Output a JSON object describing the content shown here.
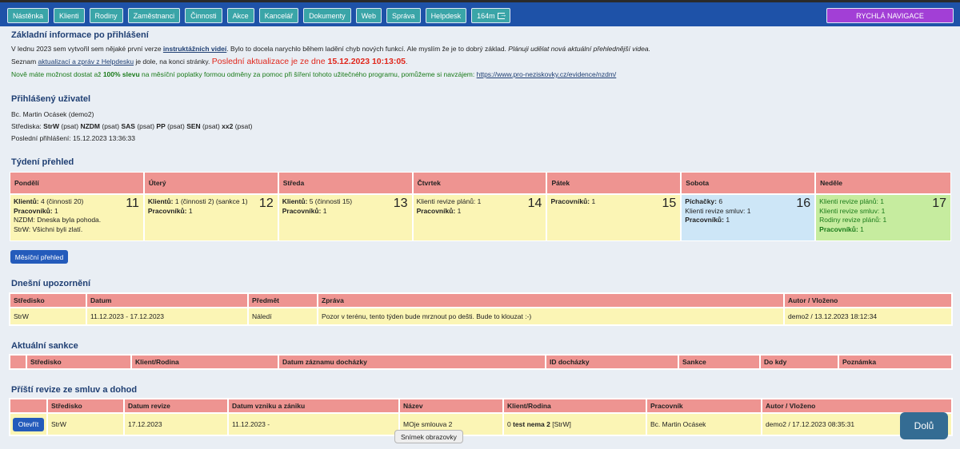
{
  "nav": {
    "items": [
      "Nástěnka",
      "Klienti",
      "Rodiny",
      "Zaměstnanci",
      "Činnosti",
      "Akce",
      "Kancelář",
      "Dokumenty",
      "Web",
      "Správa",
      "Helpdesk"
    ],
    "timer": "164m",
    "quick_nav": "RYCHLÁ NAVIGACE"
  },
  "info": {
    "title": "Základní informace po přihlášení",
    "line1_a": "V lednu 2023 sem vytvořil sem nějaké první verze ",
    "line1_link": "instruktážních videí",
    "line1_b": ". Bylo to docela narychlo během ladění chyb nových funkcí. Ale myslím že je to dobrý základ. ",
    "line1_c": "Plánuji udělat nová aktuální přehlednější videa.",
    "line2_a": "Seznam ",
    "line2_link": "aktualizací a zpráv z Helpdesku",
    "line2_b": " je dole, na konci stránky. ",
    "line2_red": "Poslední aktualizace je ze dne ",
    "line2_date": "15.12.2023 10:13:05",
    "line2_end": ".",
    "line3_a": "Nově máte možnost dostat až ",
    "line3_bold": "100% slevu",
    "line3_b": " na měsíční poplatky formou odměny za pomoc při šíření tohoto užitečného programu, pomůžeme si navzájem: ",
    "line3_link": "https://www.pro-neziskovky.cz/evidence/nzdm/"
  },
  "user": {
    "title": "Přihlášený uživatel",
    "name": "Bc. Martin Ocásek (demo2)",
    "centers_label": "Střediska: ",
    "centers": [
      {
        "code": "StrW",
        "perm": " (psat) "
      },
      {
        "code": "NZDM",
        "perm": " (psat) "
      },
      {
        "code": "SAS",
        "perm": " (psat) "
      },
      {
        "code": "PP",
        "perm": " (psat) "
      },
      {
        "code": "SEN",
        "perm": " (psat) "
      },
      {
        "code": "xx2",
        "perm": " (psat)"
      }
    ],
    "last_login": "Poslední přihlášení: 15.12.2023 13:36:33"
  },
  "week": {
    "title": "Týdení přehled",
    "days": [
      {
        "name": "Pondělí",
        "num": "11",
        "lines": [
          [
            "Klientů:",
            " 4 (činnosti 20)"
          ],
          [
            "Pracovníků:",
            " 1"
          ],
          [
            "",
            "NZDM: Dneska byla pohoda."
          ],
          [
            "",
            "StrW: Všichni byli zlatí."
          ]
        ]
      },
      {
        "name": "Úterý",
        "num": "12",
        "lines": [
          [
            "Klientů:",
            " 1 (činnosti 2) (sankce 1)"
          ],
          [
            "Pracovníků:",
            " 1"
          ]
        ]
      },
      {
        "name": "Středa",
        "num": "13",
        "lines": [
          [
            "Klientů:",
            " 5 (činnosti 15)"
          ],
          [
            "Pracovníků:",
            " 1"
          ]
        ]
      },
      {
        "name": "Čtvrtek",
        "num": "14",
        "lines": [
          [
            "",
            "Klienti revize plánů: 1"
          ],
          [
            "Pracovníků:",
            " 1"
          ]
        ]
      },
      {
        "name": "Pátek",
        "num": "15",
        "lines": [
          [
            "Pracovníků:",
            " 1"
          ]
        ]
      },
      {
        "name": "Sobota",
        "num": "16",
        "lines": [
          [
            "Píchačky:",
            " 6"
          ],
          [
            "",
            "Klienti revize smluv: 1"
          ],
          [
            "Pracovníků:",
            " 1"
          ]
        ]
      },
      {
        "name": "Neděle",
        "num": "17",
        "lines": [
          [
            "",
            "Klienti revize plánů: 1"
          ],
          [
            "",
            "Klienti revize smluv: 1"
          ],
          [
            "",
            "Rodiny revize plánů: 1"
          ],
          [
            "Pracovníků:",
            " 1"
          ]
        ]
      }
    ],
    "monthly_button": "Měsíční přehled"
  },
  "alerts": {
    "title": "Dnešní upozornění",
    "headers": [
      "Středisko",
      "Datum",
      "Předmět",
      "Zpráva",
      "Autor / Vloženo"
    ],
    "rows": [
      [
        "StrW",
        "11.12.2023 - 17.12.2023",
        "Náledí",
        "Pozor v terénu, tento týden bude mrznout po dešti. Bude to klouzat :-)",
        "demo2 / 13.12.2023 18:12:34"
      ]
    ]
  },
  "sanctions": {
    "title": "Aktuální sankce",
    "headers": [
      "",
      "Středisko",
      "Klient/Rodina",
      "Datum záznamu docházky",
      "ID docházky",
      "Sankce",
      "Do kdy",
      "Poznámka"
    ]
  },
  "revisions": {
    "title": "Příští revize ze smluv a dohod",
    "headers": [
      "",
      "Středisko",
      "Datum revize",
      "Datum vzniku a zániku",
      "Název",
      "Klient/Rodina",
      "Pracovník",
      "Autor / Vloženo"
    ],
    "row": {
      "open": "Otevřít",
      "center": "StrW",
      "date": "17.12.2023",
      "period": "11.12.2023 -",
      "name": "MOje smlouva 2",
      "client_num": "0 ",
      "client_bold": "test nema 2",
      "client_tag": " [StrW]",
      "worker": "Bc. Martin Ocásek",
      "author": "demo2 / 17.12.2023 08:35:31"
    }
  },
  "down_button": "Dolů",
  "tooltip": "Snímek obrazovky"
}
